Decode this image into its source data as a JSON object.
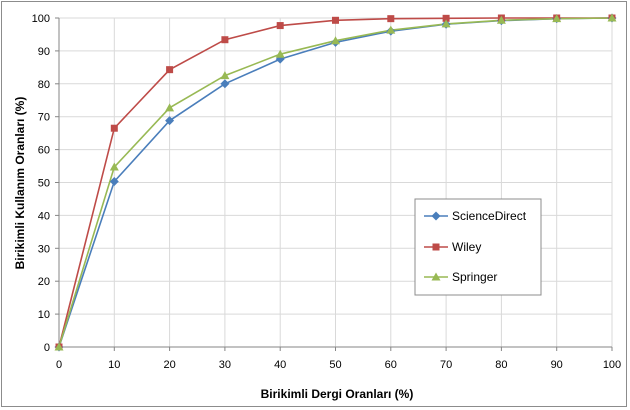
{
  "chart_data": {
    "type": "line",
    "title": "",
    "xlabel": "Birikimli Dergi Oranları (%)",
    "ylabel": "Birikimli Kullanım Oranları (%)",
    "xlim": [
      0,
      100
    ],
    "ylim": [
      0,
      100
    ],
    "x_ticks": [
      "0",
      "10",
      "20",
      "30",
      "40",
      "50",
      "60",
      "70",
      "80",
      "90",
      "100"
    ],
    "y_ticks": [
      "0",
      "10",
      "20",
      "30",
      "40",
      "50",
      "60",
      "70",
      "80",
      "90",
      "100"
    ],
    "grid": true,
    "legend_position": "right",
    "x": [
      0,
      10,
      20,
      30,
      40,
      50,
      60,
      70,
      80,
      90,
      100
    ],
    "series": [
      {
        "name": "ScienceDirect",
        "color": "#4a7ebb",
        "marker": "diamond",
        "values": [
          0,
          50.3,
          68.8,
          80,
          87.5,
          92.6,
          96,
          98.1,
          99.2,
          99.8,
          100
        ]
      },
      {
        "name": "Wiley",
        "color": "#be4b48",
        "marker": "square",
        "values": [
          0,
          66.5,
          84.3,
          93.4,
          97.7,
          99.3,
          99.8,
          99.9,
          100,
          100,
          100
        ]
      },
      {
        "name": "Springer",
        "color": "#98b954",
        "marker": "triangle",
        "values": [
          0,
          54.7,
          72.7,
          82.5,
          89,
          93.1,
          96.3,
          98.2,
          99.3,
          99.8,
          100
        ]
      }
    ]
  }
}
